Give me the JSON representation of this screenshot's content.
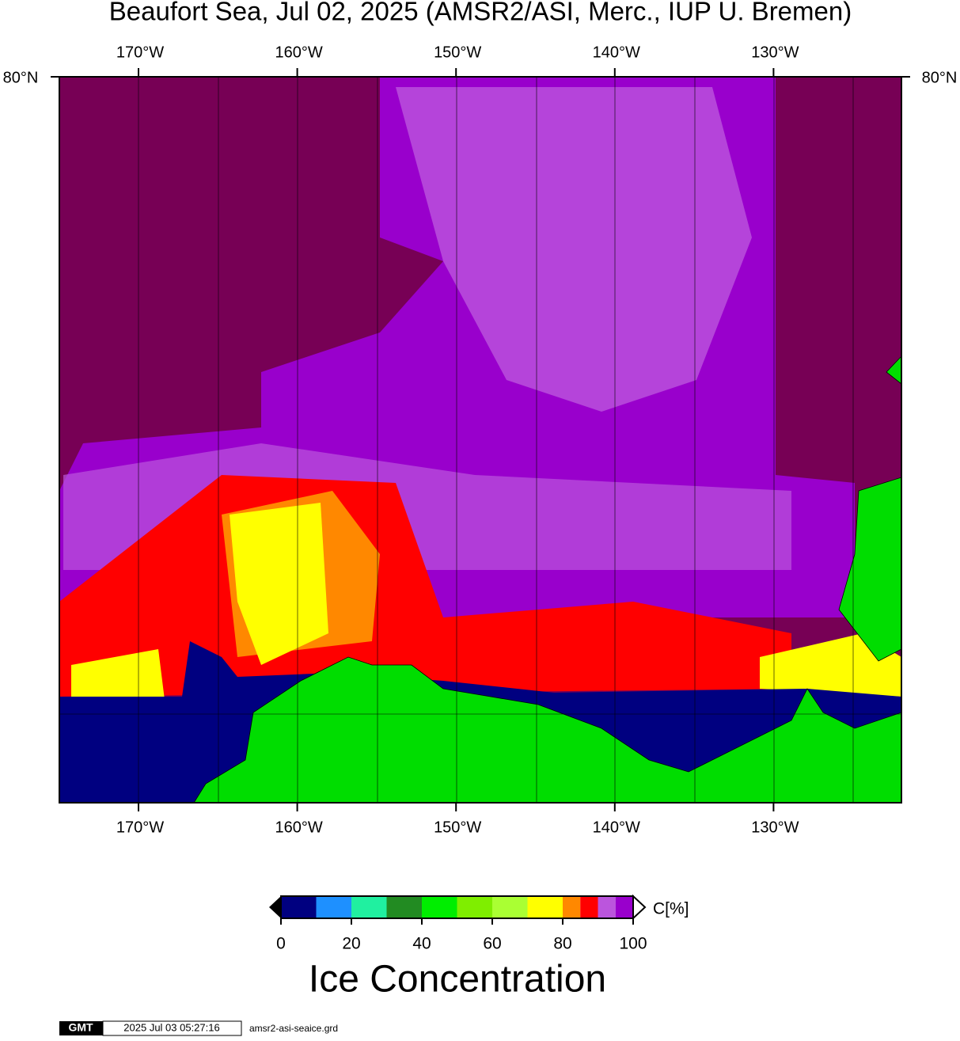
{
  "title": "Beaufort Sea, Jul 02, 2025 (AMSR2/ASI, Merc., IUP U. Bremen)",
  "map": {
    "lon_labels": [
      "170°W",
      "160°W",
      "150°W",
      "140°W",
      "130°W"
    ],
    "lat_label": "80°N"
  },
  "colorbar": {
    "bins": [
      0,
      10,
      20,
      30,
      40,
      50,
      60,
      70,
      80,
      85,
      90,
      95,
      100
    ],
    "colors": [
      "#000080",
      "#1e90ff",
      "#20f0a0",
      "#228b22",
      "#00ee00",
      "#7fee00",
      "#aaff33",
      "#ffff00",
      "#ff8800",
      "#ff0000",
      "#bb55dd",
      "#9900cc"
    ],
    "ticks": [
      0,
      20,
      40,
      60,
      80,
      100
    ],
    "unit": "C[%]",
    "label": "Ice Concentration"
  },
  "footer": {
    "logo": "GMT",
    "timestamp": "2025 Jul 03 05:27:16",
    "file": "amsr2-asi-seaice.grd"
  }
}
